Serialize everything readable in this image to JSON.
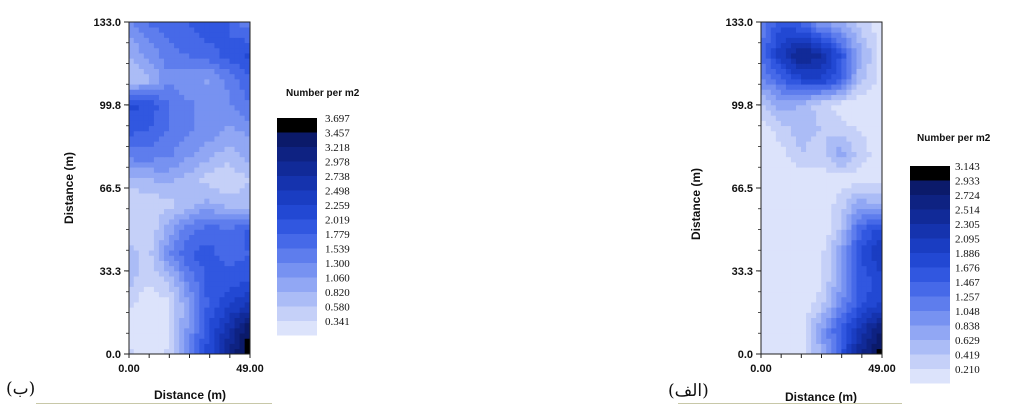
{
  "chart_data": [
    {
      "type": "heatmap",
      "caption": "(ب)",
      "xlabel": "Distance (m)",
      "ylabel": "Distance (m)",
      "xlim": [
        0,
        49
      ],
      "ylim": [
        0,
        133
      ],
      "x_ticks": [
        "0.00",
        "49.00"
      ],
      "y_ticks": [
        "0.0",
        "33.3",
        "66.5",
        "99.8",
        "133.0"
      ],
      "legend_title": "Number per m2",
      "legend_levels": [
        "3.697",
        "3.457",
        "3.218",
        "2.978",
        "2.738",
        "2.498",
        "2.259",
        "2.019",
        "1.779",
        "1.539",
        "1.300",
        "1.060",
        "0.820",
        "0.580",
        "0.341"
      ],
      "x": [
        0,
        8,
        16,
        24,
        32,
        40,
        49
      ],
      "y": [
        0,
        10,
        20,
        30,
        40,
        50,
        60,
        70,
        80,
        90,
        100,
        110,
        120,
        133
      ],
      "z": [
        [
          0.6,
          0.5,
          0.6,
          1.4,
          2.2,
          3.0,
          3.7
        ],
        [
          0.5,
          0.4,
          0.5,
          1.3,
          2.1,
          2.7,
          3.5
        ],
        [
          0.6,
          0.4,
          0.5,
          1.2,
          1.9,
          2.3,
          2.6
        ],
        [
          0.9,
          0.6,
          0.8,
          1.5,
          2.0,
          2.0,
          2.1
        ],
        [
          0.9,
          0.7,
          1.4,
          1.9,
          2.0,
          1.8,
          1.9
        ],
        [
          0.7,
          0.6,
          1.1,
          1.6,
          1.8,
          1.7,
          2.0
        ],
        [
          0.6,
          0.6,
          0.7,
          0.9,
          1.1,
          0.9,
          0.9
        ],
        [
          0.9,
          1.0,
          1.1,
          0.9,
          0.7,
          0.6,
          0.8
        ],
        [
          1.6,
          1.6,
          1.5,
          1.3,
          1.1,
          0.9,
          1.1
        ],
        [
          2.0,
          1.9,
          1.7,
          1.5,
          1.4,
          1.2,
          1.3
        ],
        [
          2.2,
          2.1,
          1.7,
          1.5,
          1.4,
          1.4,
          1.7
        ],
        [
          0.8,
          0.9,
          1.4,
          1.3,
          1.2,
          1.5,
          1.9
        ],
        [
          1.0,
          1.3,
          1.6,
          1.7,
          1.8,
          2.0,
          2.2
        ],
        [
          1.4,
          1.7,
          1.8,
          1.9,
          2.1,
          1.9,
          1.5
        ]
      ]
    },
    {
      "type": "heatmap",
      "caption": "(الف)",
      "xlabel": "Distance (m)",
      "ylabel": "Distance (m)",
      "xlim": [
        0,
        49
      ],
      "ylim": [
        0,
        133
      ],
      "x_ticks": [
        "0.00",
        "49.00"
      ],
      "y_ticks": [
        "0.0",
        "33.3",
        "66.5",
        "99.8",
        "133.0"
      ],
      "legend_title": "Number per m2",
      "legend_levels": [
        "3.143",
        "2.933",
        "2.724",
        "2.514",
        "2.305",
        "2.095",
        "1.886",
        "1.676",
        "1.467",
        "1.257",
        "1.048",
        "0.838",
        "0.629",
        "0.419",
        "0.210"
      ],
      "x": [
        0,
        8,
        16,
        24,
        32,
        40,
        49
      ],
      "y": [
        0,
        10,
        20,
        30,
        40,
        50,
        60,
        70,
        80,
        90,
        100,
        110,
        120,
        133
      ],
      "z": [
        [
          0.2,
          0.2,
          0.3,
          0.8,
          1.6,
          2.5,
          3.1
        ],
        [
          0.2,
          0.2,
          0.3,
          0.9,
          1.6,
          2.2,
          2.8
        ],
        [
          0.2,
          0.2,
          0.2,
          0.5,
          1.1,
          1.7,
          2.0
        ],
        [
          0.2,
          0.2,
          0.2,
          0.3,
          0.9,
          1.6,
          1.9
        ],
        [
          0.2,
          0.2,
          0.2,
          0.3,
          0.9,
          1.8,
          2.2
        ],
        [
          0.2,
          0.2,
          0.2,
          0.2,
          0.6,
          1.5,
          1.9
        ],
        [
          0.2,
          0.2,
          0.3,
          0.2,
          0.5,
          0.9,
          0.8
        ],
        [
          0.2,
          0.2,
          0.2,
          0.3,
          0.3,
          0.3,
          0.4
        ],
        [
          0.2,
          0.3,
          0.6,
          0.5,
          0.9,
          0.5,
          0.3
        ],
        [
          0.3,
          0.5,
          0.7,
          0.6,
          0.5,
          0.4,
          0.3
        ],
        [
          0.6,
          0.9,
          0.8,
          0.5,
          0.3,
          0.2,
          0.2
        ],
        [
          1.1,
          1.5,
          1.9,
          2.0,
          1.6,
          0.7,
          0.3
        ],
        [
          1.4,
          2.1,
          2.6,
          2.4,
          1.8,
          0.9,
          0.3
        ],
        [
          1.2,
          1.7,
          1.5,
          1.0,
          0.8,
          0.5,
          0.3
        ]
      ]
    }
  ]
}
